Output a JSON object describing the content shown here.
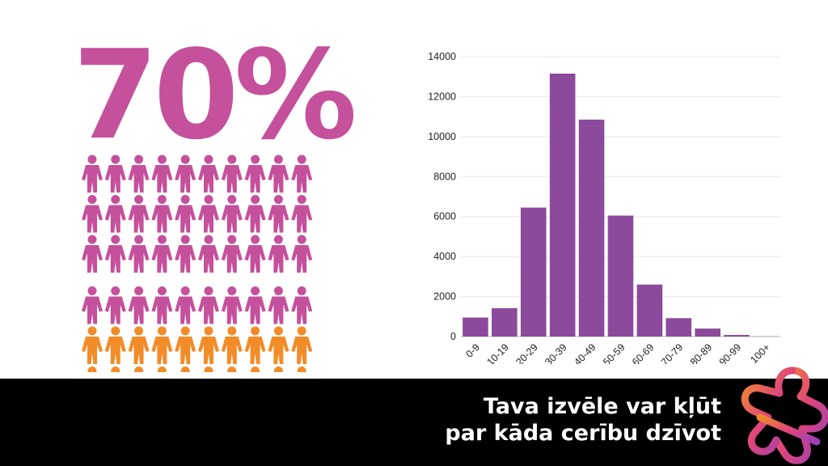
{
  "infographic": {
    "stat": "70%",
    "colors": {
      "highlight": "#c5509c",
      "other": "#f28c28",
      "bar": "#8b4a9c",
      "footer": "#000000"
    },
    "people": {
      "total": 67,
      "highlighted": 40,
      "per_row": 10,
      "icon": "person-icon"
    }
  },
  "chart_data": {
    "type": "bar",
    "categories": [
      "0-9",
      "10-19",
      "20-29",
      "30-39",
      "40-49",
      "50-59",
      "60-69",
      "70-79",
      "80-89",
      "90-99",
      "100+"
    ],
    "values": [
      950,
      1420,
      6450,
      13150,
      10850,
      6050,
      2600,
      920,
      400,
      80,
      10
    ],
    "ylim": [
      0,
      14000
    ],
    "yticks": [
      0,
      2000,
      4000,
      6000,
      8000,
      10000,
      12000,
      14000
    ],
    "grid": true,
    "legend": "none"
  },
  "footer": {
    "tagline_line1": "Tava izvēle var kļūt",
    "tagline_line2": "par kāda cerību dzīvot",
    "logo_icon": "star-logo-icon"
  }
}
